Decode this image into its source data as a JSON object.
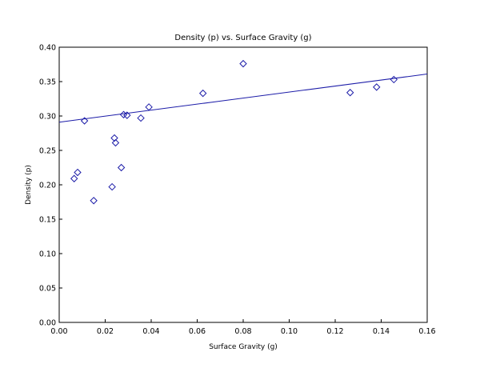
{
  "chart_data": {
    "type": "scatter",
    "title": "Density (p) vs. Surface Gravity (g)",
    "xlabel": "Surface Gravity (g)",
    "ylabel": "Density (p)",
    "xlim": [
      0,
      0.16
    ],
    "ylim": [
      0,
      0.4
    ],
    "x_ticks": [
      "0.00",
      "0.02",
      "0.04",
      "0.06",
      "0.08",
      "0.10",
      "0.12",
      "0.14",
      "0.16"
    ],
    "y_ticks": [
      "0.00",
      "0.05",
      "0.10",
      "0.15",
      "0.20",
      "0.25",
      "0.30",
      "0.35",
      "0.40"
    ],
    "grid": false,
    "marker": "diamond",
    "series": [
      {
        "points": [
          [
            0.0065,
            0.209
          ],
          [
            0.008,
            0.218
          ],
          [
            0.011,
            0.293
          ],
          [
            0.015,
            0.177
          ],
          [
            0.023,
            0.197
          ],
          [
            0.024,
            0.268
          ],
          [
            0.0245,
            0.261
          ],
          [
            0.027,
            0.225
          ],
          [
            0.028,
            0.302
          ],
          [
            0.0295,
            0.301
          ],
          [
            0.0355,
            0.297
          ],
          [
            0.039,
            0.313
          ],
          [
            0.0625,
            0.333
          ],
          [
            0.08,
            0.376
          ],
          [
            0.1265,
            0.334
          ],
          [
            0.138,
            0.342
          ],
          [
            0.1455,
            0.353
          ]
        ]
      }
    ],
    "trendline": {
      "x": [
        0,
        0.16
      ],
      "y": [
        0.291,
        0.361
      ]
    },
    "colors": {
      "series": "#1c1ca8",
      "axis": "#000000"
    }
  }
}
